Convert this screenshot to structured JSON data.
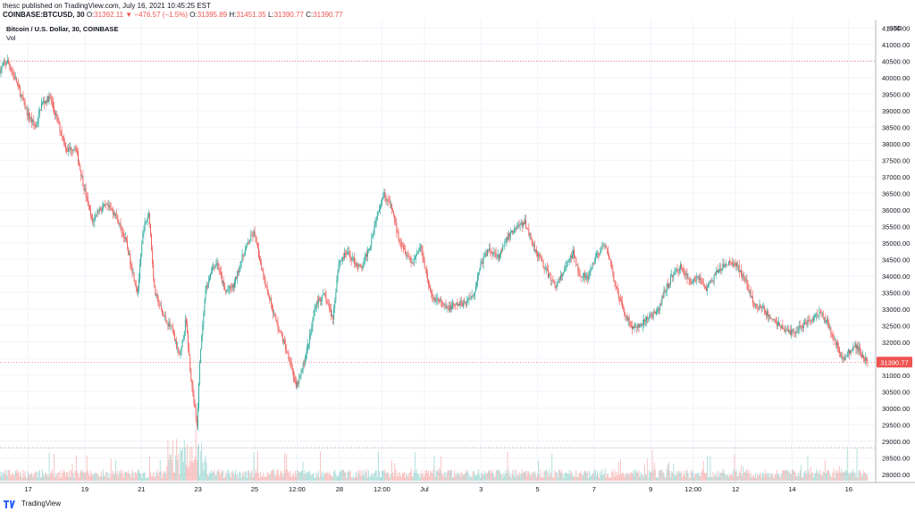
{
  "header": {
    "publish_line": "thesc published on TradingView.com, July 16, 2021 10:45:25 EST",
    "symbol": "COINBASE:BTCUSD, 30",
    "open_label": "O:",
    "open": "31392.11",
    "change": "▼ −476.57 (−1.5%)",
    "open2": "31395.89",
    "high": "31451.35",
    "low": "31390.77",
    "close": "31390.77"
  },
  "series_title": "Bitcoin / U.S. Dollar, 30, COINBASE",
  "volume_label": "Vol",
  "footer": {
    "brand": "TradingView",
    "logo_icon": "tradingview-logo-icon"
  },
  "colors": {
    "up": "#26a69a",
    "down": "#ef5350",
    "grid": "#f0f3fa",
    "price_tag": "#ef5350"
  },
  "chart_data": {
    "type": "line",
    "title": "Bitcoin / U.S. Dollar, 30, COINBASE",
    "currency": "USD",
    "ylim": [
      27750,
      41750
    ],
    "yticks": [
      28000,
      28500,
      29000,
      29500,
      30000,
      30500,
      31000,
      31500,
      32000,
      32500,
      33000,
      33500,
      34000,
      34500,
      35000,
      35500,
      36000,
      36500,
      37000,
      37500,
      38000,
      38500,
      39000,
      39500,
      40000,
      40500,
      41000,
      41500
    ],
    "x_tick_labels": [
      {
        "t": 0.5,
        "label": "17"
      },
      {
        "t": 2.5,
        "label": "19"
      },
      {
        "t": 4.5,
        "label": "21"
      },
      {
        "t": 6.5,
        "label": "23"
      },
      {
        "t": 8.5,
        "label": "25"
      },
      {
        "t": 10.0,
        "label": "12:00"
      },
      {
        "t": 11.5,
        "label": "28"
      },
      {
        "t": 13.0,
        "label": "12:00"
      },
      {
        "t": 14.5,
        "label": "Jul"
      },
      {
        "t": 16.5,
        "label": "3"
      },
      {
        "t": 18.5,
        "label": "5"
      },
      {
        "t": 20.5,
        "label": "7"
      },
      {
        "t": 22.5,
        "label": "9"
      },
      {
        "t": 24.0,
        "label": "12:00"
      },
      {
        "t": 25.5,
        "label": "12"
      },
      {
        "t": 27.5,
        "label": "14"
      },
      {
        "t": 29.5,
        "label": "16"
      }
    ],
    "x_range": [
      -0.5,
      30.2
    ],
    "price_path": [
      [
        -0.5,
        40200
      ],
      [
        -0.2,
        40500
      ],
      [
        0.1,
        39900
      ],
      [
        0.5,
        38900
      ],
      [
        0.8,
        38500
      ],
      [
        1.0,
        39200
      ],
      [
        1.3,
        39400
      ],
      [
        1.6,
        38600
      ],
      [
        1.9,
        37800
      ],
      [
        2.2,
        37900
      ],
      [
        2.5,
        36700
      ],
      [
        2.8,
        35600
      ],
      [
        3.0,
        36000
      ],
      [
        3.3,
        36100
      ],
      [
        3.6,
        35900
      ],
      [
        4.0,
        35000
      ],
      [
        4.2,
        34200
      ],
      [
        4.4,
        33500
      ],
      [
        4.6,
        35400
      ],
      [
        4.8,
        35900
      ],
      [
        5.0,
        33500
      ],
      [
        5.3,
        32800
      ],
      [
        5.6,
        32400
      ],
      [
        5.9,
        31500
      ],
      [
        6.1,
        32700
      ],
      [
        6.3,
        30800
      ],
      [
        6.5,
        29400
      ],
      [
        6.6,
        31500
      ],
      [
        6.8,
        33500
      ],
      [
        7.0,
        34200
      ],
      [
        7.2,
        34400
      ],
      [
        7.5,
        33500
      ],
      [
        7.8,
        33700
      ],
      [
        8.0,
        34300
      ],
      [
        8.2,
        34800
      ],
      [
        8.5,
        35300
      ],
      [
        8.8,
        34200
      ],
      [
        9.0,
        33500
      ],
      [
        9.3,
        32600
      ],
      [
        9.6,
        31900
      ],
      [
        9.8,
        31400
      ],
      [
        10.0,
        30600
      ],
      [
        10.2,
        31100
      ],
      [
        10.5,
        32200
      ],
      [
        10.7,
        33200
      ],
      [
        11.0,
        33400
      ],
      [
        11.3,
        32700
      ],
      [
        11.5,
        34400
      ],
      [
        11.8,
        34700
      ],
      [
        12.0,
        34500
      ],
      [
        12.3,
        34200
      ],
      [
        12.6,
        34900
      ],
      [
        12.9,
        36000
      ],
      [
        13.1,
        36500
      ],
      [
        13.4,
        36000
      ],
      [
        13.6,
        35200
      ],
      [
        13.9,
        34700
      ],
      [
        14.1,
        34400
      ],
      [
        14.4,
        34900
      ],
      [
        14.6,
        34100
      ],
      [
        14.8,
        33300
      ],
      [
        15.0,
        33300
      ],
      [
        15.3,
        33000
      ],
      [
        15.6,
        33100
      ],
      [
        16.0,
        33200
      ],
      [
        16.3,
        33500
      ],
      [
        16.5,
        34300
      ],
      [
        16.8,
        34800
      ],
      [
        17.2,
        34600
      ],
      [
        17.5,
        35200
      ],
      [
        17.8,
        35500
      ],
      [
        18.1,
        35600
      ],
      [
        18.4,
        34900
      ],
      [
        18.7,
        34400
      ],
      [
        19.0,
        33900
      ],
      [
        19.2,
        33700
      ],
      [
        19.5,
        34200
      ],
      [
        19.8,
        34700
      ],
      [
        20.0,
        34100
      ],
      [
        20.3,
        33900
      ],
      [
        20.6,
        34600
      ],
      [
        20.9,
        34900
      ],
      [
        21.1,
        34500
      ],
      [
        21.3,
        33600
      ],
      [
        21.6,
        32900
      ],
      [
        21.9,
        32400
      ],
      [
        22.2,
        32500
      ],
      [
        22.5,
        32800
      ],
      [
        22.8,
        32900
      ],
      [
        23.0,
        33500
      ],
      [
        23.3,
        34000
      ],
      [
        23.6,
        34300
      ],
      [
        23.9,
        33800
      ],
      [
        24.2,
        34000
      ],
      [
        24.5,
        33600
      ],
      [
        24.8,
        34000
      ],
      [
        25.1,
        34300
      ],
      [
        25.4,
        34400
      ],
      [
        25.6,
        34300
      ],
      [
        25.9,
        33800
      ],
      [
        26.2,
        33100
      ],
      [
        26.5,
        33000
      ],
      [
        26.8,
        32700
      ],
      [
        27.1,
        32500
      ],
      [
        27.4,
        32300
      ],
      [
        27.6,
        32300
      ],
      [
        27.9,
        32500
      ],
      [
        28.2,
        32700
      ],
      [
        28.5,
        32900
      ],
      [
        28.8,
        32600
      ],
      [
        29.0,
        32100
      ],
      [
        29.2,
        31700
      ],
      [
        29.4,
        31500
      ],
      [
        29.6,
        31800
      ],
      [
        29.8,
        31900
      ],
      [
        30.0,
        31600
      ],
      [
        30.2,
        31391
      ]
    ],
    "ref_lines": [
      {
        "y": 40500,
        "color": "#ef5350"
      },
      {
        "y": 31390.77,
        "color": "#ef5350"
      },
      {
        "y": 28800,
        "color": "#787b86"
      }
    ],
    "price_tag": {
      "value": "31390.77",
      "y": 31390.77
    },
    "volume": {
      "baseline_y": 28800,
      "note": "volume histogram at bottom"
    }
  }
}
